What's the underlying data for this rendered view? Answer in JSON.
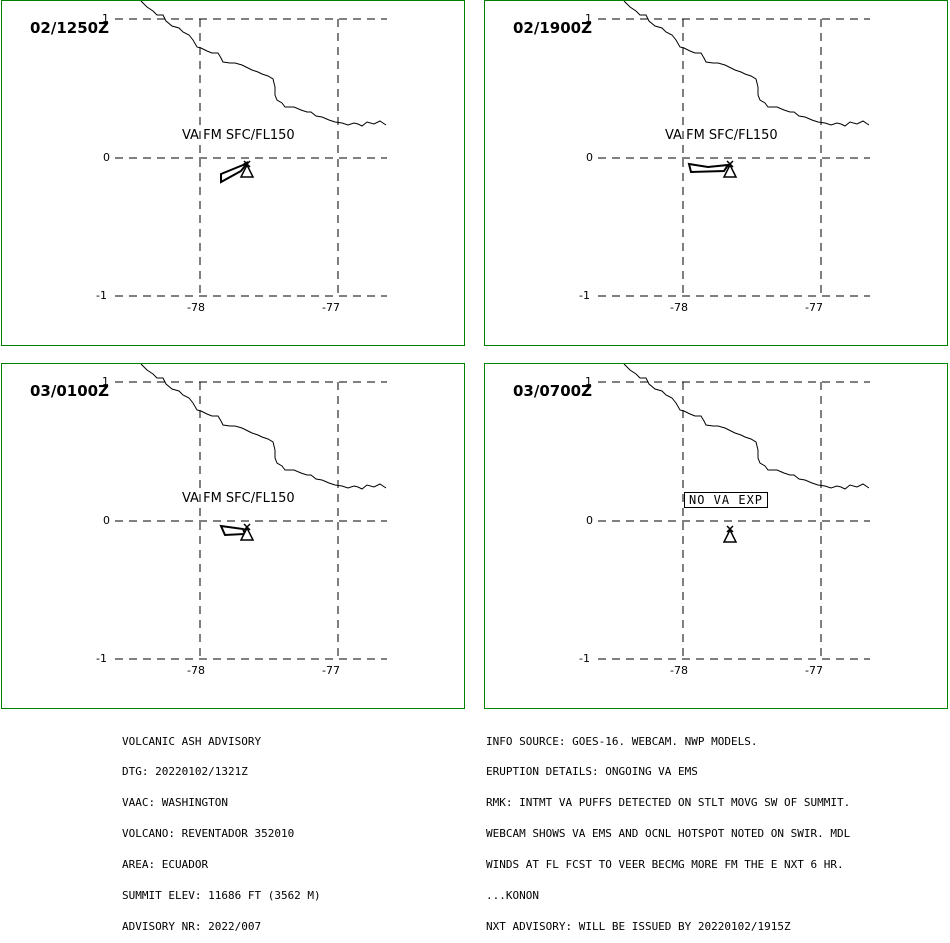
{
  "panels": [
    {
      "time_label": "02/1250Z",
      "layer_label": "VA FM SFC/FL150",
      "no_va_label": "",
      "lat_ticks": [
        "1",
        "0",
        "-1"
      ],
      "lon_ticks": [
        "-78",
        "-77"
      ]
    },
    {
      "time_label": "02/1900Z",
      "layer_label": "VA FM SFC/FL150",
      "no_va_label": "",
      "lat_ticks": [
        "1",
        "0",
        "-1"
      ],
      "lon_ticks": [
        "-78",
        "-77"
      ]
    },
    {
      "time_label": "03/0100Z",
      "layer_label": "VA FM SFC/FL150",
      "no_va_label": "",
      "lat_ticks": [
        "1",
        "0",
        "-1"
      ],
      "lon_ticks": [
        "-78",
        "-77"
      ]
    },
    {
      "time_label": "03/0700Z",
      "layer_label": "",
      "no_va_label": "NO VA EXP",
      "lat_ticks": [
        "1",
        "0",
        "-1"
      ],
      "lon_ticks": [
        "-78",
        "-77"
      ]
    }
  ],
  "advisory_left": [
    "VOLCANIC ASH ADVISORY",
    "DTG: 20220102/1321Z",
    "VAAC: WASHINGTON",
    "VOLCANO: REVENTADOR 352010",
    "AREA: ECUADOR",
    "SUMMIT ELEV: 11686 FT (3562 M)",
    "ADVISORY NR: 2022/007"
  ],
  "advisory_right": [
    "INFO SOURCE: GOES-16. WEBCAM. NWP MODELS.",
    "ERUPTION DETAILS: ONGOING VA EMS",
    "RMK: INTMT VA PUFFS DETECTED ON STLT MOVG SW OF SUMMIT.",
    "WEBCAM SHOWS VA EMS AND OCNL HOTSPOT NOTED ON SWIR. MDL",
    "WINDS AT FL FCST TO VEER BECMG MORE FM THE E NXT 6 HR.",
    "...KONON",
    "NXT ADVISORY: WILL BE ISSUED BY 20220102/1915Z"
  ],
  "colors": {
    "panel_border": "#008000",
    "lines": "#000000",
    "background": "#ffffff"
  }
}
